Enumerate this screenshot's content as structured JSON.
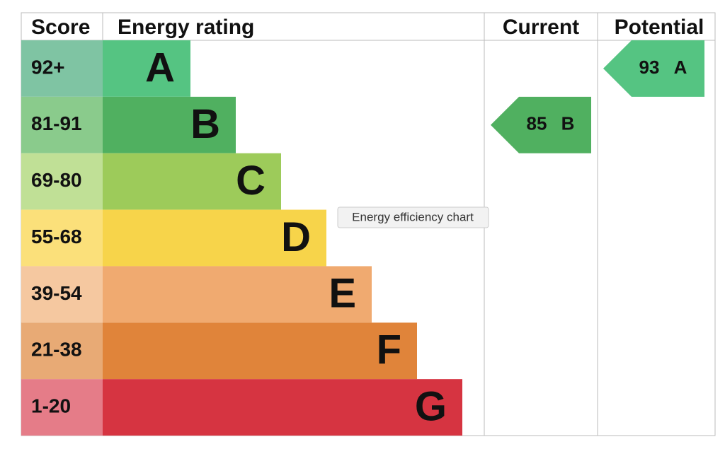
{
  "header": {
    "score": "Score",
    "rating": "Energy rating",
    "current": "Current",
    "potential": "Potential"
  },
  "bands": [
    {
      "score": "92+",
      "letter": "A"
    },
    {
      "score": "81-91",
      "letter": "B"
    },
    {
      "score": "69-80",
      "letter": "C"
    },
    {
      "score": "55-68",
      "letter": "D"
    },
    {
      "score": "39-54",
      "letter": "E"
    },
    {
      "score": "21-38",
      "letter": "F"
    },
    {
      "score": "1-20",
      "letter": "G"
    }
  ],
  "current": {
    "value": 85,
    "letter": "B"
  },
  "potential": {
    "value": 93,
    "letter": "A"
  },
  "tooltip": "Energy efficiency chart"
}
